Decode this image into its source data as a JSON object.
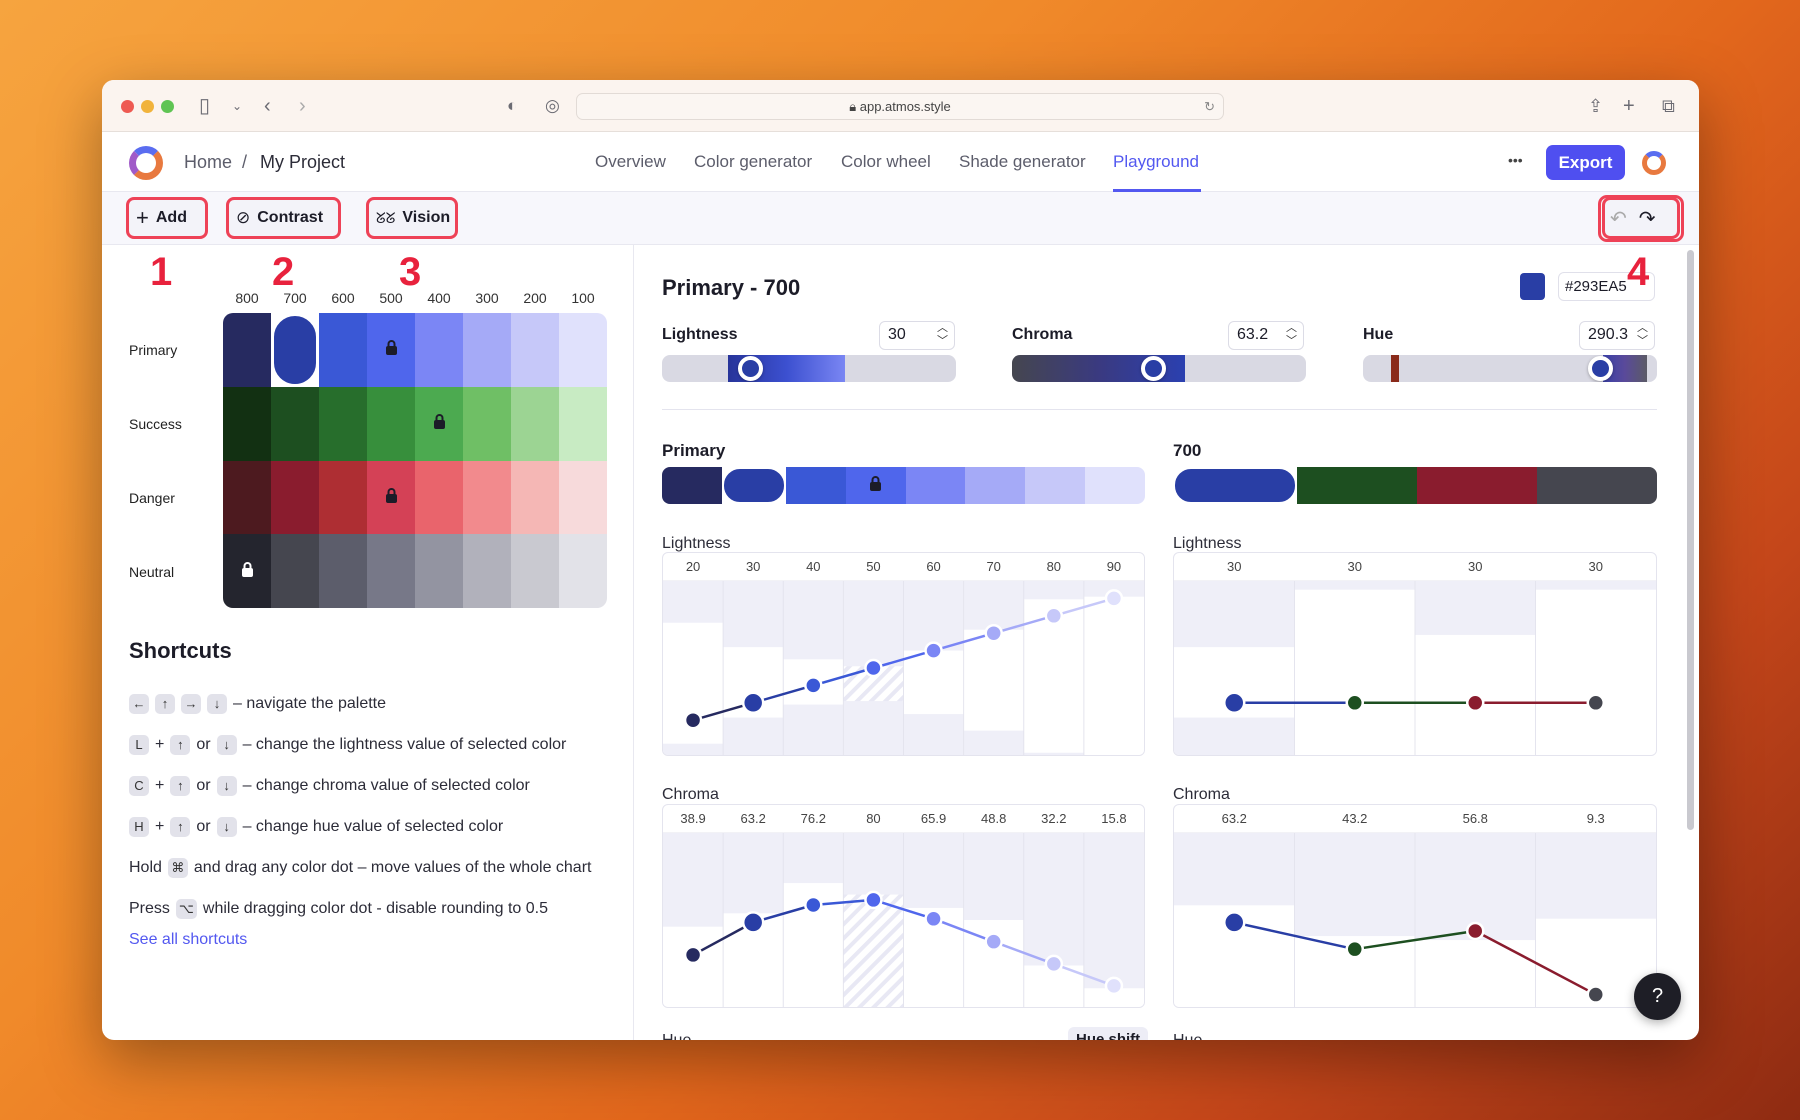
{
  "browser": {
    "url": "app.atmos.style"
  },
  "header": {
    "home": "Home",
    "separator": "/",
    "project": "My Project",
    "nav": [
      "Overview",
      "Color generator",
      "Color wheel",
      "Shade generator",
      "Playground"
    ],
    "active_nav": "Playground",
    "more": "•••",
    "export": "Export"
  },
  "toolbar": {
    "add": "Add",
    "contrast": "Contrast",
    "vision": "Vision"
  },
  "annotations": [
    "1",
    "2",
    "3",
    "4"
  ],
  "palette": {
    "columns": [
      "800",
      "700",
      "600",
      "500",
      "400",
      "300",
      "200",
      "100"
    ],
    "rows": [
      {
        "name": "Primary",
        "colors": [
          "#262a60",
          "#293ea5",
          "#3a58d6",
          "#4f66ec",
          "#7b86f5",
          "#a5aaf7",
          "#c6c8f9",
          "#e0e1fc"
        ],
        "locked": 3
      },
      {
        "name": "Success",
        "colors": [
          "#123012",
          "#1d4f20",
          "#276e2c",
          "#378f3c",
          "#4caa50",
          "#6fbf65",
          "#9cd493",
          "#c8ebc3"
        ],
        "locked": 4
      },
      {
        "name": "Danger",
        "colors": [
          "#4d1a1f",
          "#8a1c2e",
          "#ae2e33",
          "#d44156",
          "#e9646c",
          "#f28a8d",
          "#f5b7b5",
          "#f7dadb"
        ],
        "locked": 3
      },
      {
        "name": "Neutral",
        "colors": [
          "#24252e",
          "#45464f",
          "#5c5d6b",
          "#777888",
          "#9394a1",
          "#b1b1bb",
          "#c9c9d0",
          "#e2e2e8"
        ],
        "locked": 0
      }
    ],
    "selected": {
      "row": 0,
      "col": 1
    }
  },
  "shortcuts": {
    "title": "Shortcuts",
    "lines": [
      {
        "pre": "",
        "keys": [
          "←",
          "↑",
          "→",
          "↓"
        ],
        "text": "– navigate the palette"
      },
      {
        "pre": "",
        "keys": [
          "L",
          "+",
          "↑",
          "or",
          "↓"
        ],
        "text": "– change the lightness value of selected color"
      },
      {
        "pre": "",
        "keys": [
          "C",
          "+",
          "↑",
          "or",
          "↓"
        ],
        "text": "– change chroma value of selected color"
      },
      {
        "pre": "",
        "keys": [
          "H",
          "+",
          "↑",
          "or",
          "↓"
        ],
        "text": "– change hue value of selected color"
      },
      {
        "pre": "Hold",
        "keys": [
          "⌘"
        ],
        "text": "and drag any color dot – move values of the whole chart"
      },
      {
        "pre": "Press",
        "keys": [
          "⌥"
        ],
        "text": "while dragging color dot - disable rounding to 0.5"
      }
    ],
    "link": "See all shortcuts"
  },
  "editor": {
    "title": "Primary - 700",
    "hex": "#293EA5",
    "swatch": "#293ea5",
    "lightness": {
      "label": "Lightness",
      "value": "30",
      "fraction": 0.3
    },
    "chroma": {
      "label": "Chroma",
      "value": "63.2",
      "fraction": 0.48
    },
    "hue": {
      "label": "Hue",
      "value": "290.3",
      "fraction": 0.806
    }
  },
  "strips": {
    "left_title": "Primary",
    "right_title": "700",
    "right_colors": [
      "#293ea5",
      "#1d4f20",
      "#8a1c2e",
      "#45464f"
    ]
  },
  "chart_data": [
    {
      "type": "line",
      "title": "Lightness",
      "categories": [
        "800",
        "700",
        "600",
        "500",
        "400",
        "300",
        "200",
        "100"
      ],
      "values": [
        20,
        30,
        40,
        50,
        60,
        70,
        80,
        90
      ],
      "labels": [
        "20",
        "30",
        "40",
        "50",
        "60",
        "70",
        "80",
        "90"
      ],
      "ylim": [
        0,
        100
      ],
      "colors": [
        "#262a60",
        "#293ea5",
        "#3a58d6",
        "#4f66ec",
        "#7b86f5",
        "#a5aaf7",
        "#c6c8f9",
        "#e0e1fc"
      ]
    },
    {
      "type": "line",
      "title": "Lightness",
      "categories": [
        "Primary",
        "Success",
        "Danger",
        "Neutral"
      ],
      "values": [
        30,
        30,
        30,
        30
      ],
      "labels": [
        "30",
        "30",
        "30",
        "30"
      ],
      "ylim": [
        0,
        100
      ],
      "colors": [
        "#293ea5",
        "#1d4f20",
        "#8a1c2e",
        "#45464f"
      ]
    },
    {
      "type": "line",
      "title": "Chroma",
      "categories": [
        "800",
        "700",
        "600",
        "500",
        "400",
        "300",
        "200",
        "100"
      ],
      "values": [
        38.9,
        63.2,
        76.2,
        80,
        65.9,
        48.8,
        32.2,
        15.8
      ],
      "labels": [
        "38.9",
        "63.2",
        "76.2",
        "80",
        "65.9",
        "48.8",
        "32.2",
        "15.8"
      ],
      "ylim": [
        0,
        130
      ],
      "colors": [
        "#262a60",
        "#293ea5",
        "#3a58d6",
        "#4f66ec",
        "#7b86f5",
        "#a5aaf7",
        "#c6c8f9",
        "#e0e1fc"
      ]
    },
    {
      "type": "line",
      "title": "Chroma",
      "categories": [
        "Primary",
        "Success",
        "Danger",
        "Neutral"
      ],
      "values": [
        63.2,
        43.2,
        56.8,
        9.3
      ],
      "labels": [
        "63.2",
        "43.2",
        "56.8",
        "9.3"
      ],
      "ylim": [
        0,
        130
      ],
      "colors": [
        "#293ea5",
        "#1d4f20",
        "#8a1c2e",
        "#45464f"
      ]
    }
  ],
  "hue_section": {
    "left": "Hue",
    "hue_shift": "Hue shift",
    "right": "Hue"
  },
  "help": "?"
}
